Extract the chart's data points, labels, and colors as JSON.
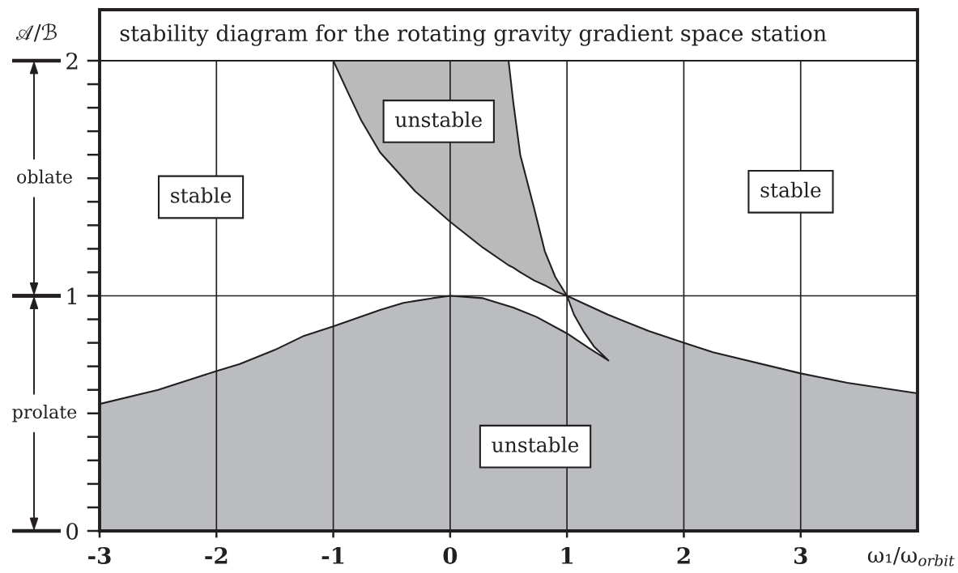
{
  "chart_data": {
    "type": "area",
    "title": "stability diagram for the rotating gravity gradient space station",
    "xlabel": "ω₁/ω$_{orbit}$",
    "ylabel": "𝒜/ℬ",
    "xlim": [
      -3,
      4
    ],
    "ylim": [
      0,
      2
    ],
    "xticks": [
      -3,
      -2,
      -1,
      0,
      1,
      2,
      3
    ],
    "yticks": [
      0,
      {
        "value": 0.1,
        "label": null
      },
      {
        "value": 0.2,
        "label": null
      },
      {
        "value": 0.3,
        "label": null
      },
      {
        "value": 0.4,
        "label": null
      },
      {
        "value": 0.5,
        "label": null
      },
      {
        "value": 0.6,
        "label": null
      },
      {
        "value": 0.7,
        "label": null
      },
      {
        "value": 0.8,
        "label": null
      },
      {
        "value": 0.9,
        "label": null
      },
      1,
      {
        "value": 1.1,
        "label": null
      },
      {
        "value": 1.2,
        "label": null
      },
      {
        "value": 1.3,
        "label": null
      },
      {
        "value": 1.4,
        "label": null
      },
      {
        "value": 1.5,
        "label": null
      },
      {
        "value": 1.6,
        "label": null
      },
      {
        "value": 1.7,
        "label": null
      },
      {
        "value": 1.8,
        "label": null
      },
      {
        "value": 1.9,
        "label": null
      },
      2
    ],
    "grid": true,
    "series": [
      {
        "color": "#bbbcc0",
        "x": [
          -3,
          -2.5,
          -2,
          -1.8,
          -1.5,
          -1.25,
          -1,
          -0.6,
          -0.4,
          -0.15,
          0,
          0.28,
          0.54,
          0.74,
          1,
          1.18,
          1.355,
          1.23,
          1.14,
          1.06,
          1,
          1.35,
          1.7,
          2,
          2.25,
          3,
          3.4,
          4
        ],
        "values": [
          0.54,
          0.6,
          0.68,
          0.71,
          0.77,
          0.83,
          0.87,
          0.94,
          0.97,
          0.99,
          1.0,
          0.99,
          0.95,
          0.91,
          0.84,
          0.78,
          0.725,
          0.785,
          0.85,
          0.92,
          1.0,
          0.92,
          0.85,
          0.8,
          0.76,
          0.67,
          0.63,
          0.585
        ]
      },
      {
        "type": "line",
        "color": "#231f20",
        "x": [
          -1,
          -0.87,
          -0.76,
          -0.6,
          -0.3,
          0,
          0.28,
          0.5,
          0.54,
          0.6,
          0.72,
          0.81,
          0.9,
          1
        ],
        "values": [
          2,
          1.86,
          1.745,
          1.61,
          1.445,
          1.315,
          1.205,
          1.13,
          1.12,
          1.1,
          1.065,
          1.045,
          1.02,
          1
        ],
        "lower": [
          2,
          1.86,
          1.745,
          1.61,
          1.445,
          1.315,
          1.205,
          1.13,
          1.12,
          1.1,
          1.065,
          1.045,
          1.02,
          1
        ],
        "upper": [
          2,
          2,
          2,
          2,
          2,
          2,
          2,
          2,
          1.825,
          1.6,
          1.37,
          1.19,
          1.08,
          1
        ]
      }
    ],
    "annotations": [
      "unstable",
      "stable",
      "stable",
      "unstable",
      "oblate",
      "prolate"
    ]
  }
}
